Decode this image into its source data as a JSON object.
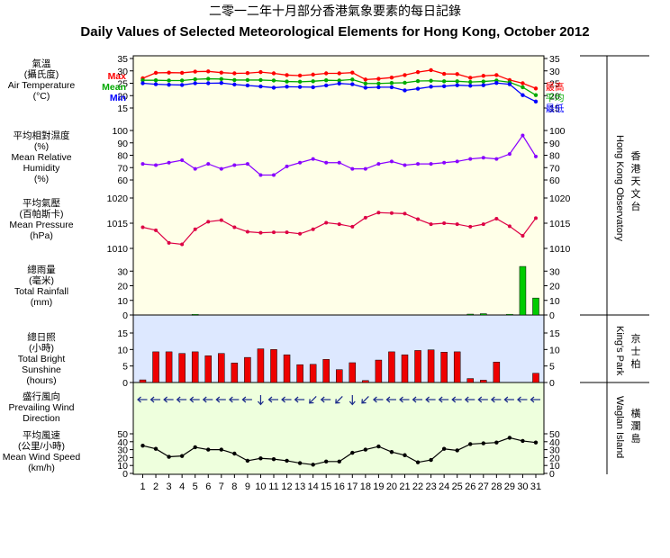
{
  "title_zh": "二零一二年十月部分香港氣象要素的每日記錄",
  "title_en": "Daily Values of Selected Meteorological Elements for Hong Kong, October 2012",
  "colors": {
    "max": "#ff0000",
    "mean": "#00aa00",
    "min": "#0000ff",
    "rh": "#8800ff",
    "pressure": "#dd0044",
    "rain": "#00cc00",
    "sun": "#ee0000",
    "wind": "#000000",
    "bg_obs": "#ffffe8",
    "bg_kp": "#dde8ff",
    "bg_wag": "#eeffdd"
  },
  "stations": {
    "observatory": {
      "en": "Hong Kong Observatory",
      "zh": [
        "香",
        "港",
        "天",
        "文",
        "台"
      ]
    },
    "kings_park": {
      "en": "King's Park",
      "zh": [
        "京",
        "士",
        "柏"
      ]
    },
    "waglan": {
      "en": "Waglan Island",
      "zh": [
        "橫",
        "瀾",
        "島"
      ]
    }
  },
  "chart_data": [
    {
      "type": "line",
      "id": "temperature",
      "label_zh": "氣溫",
      "label_zh2": "(攝氏度)",
      "label_en": "Air Temperature",
      "unit": "(°C)",
      "ylim": [
        15,
        35
      ],
      "ticks": [
        15,
        20,
        25,
        30,
        35
      ],
      "x": [
        1,
        2,
        3,
        4,
        5,
        6,
        7,
        8,
        9,
        10,
        11,
        12,
        13,
        14,
        15,
        16,
        17,
        18,
        19,
        20,
        21,
        22,
        23,
        24,
        25,
        26,
        27,
        28,
        29,
        30,
        31
      ],
      "series": [
        {
          "name": "Max",
          "name_zh": "最高",
          "values": [
            27.0,
            29.2,
            29.3,
            29.2,
            29.7,
            29.8,
            29.3,
            29.0,
            29.1,
            29.5,
            29.0,
            28.3,
            28.1,
            28.5,
            29.0,
            29.0,
            29.3,
            26.5,
            26.8,
            27.3,
            28.3,
            29.5,
            30.3,
            28.8,
            28.7,
            27.2,
            28.0,
            28.3,
            26.3,
            25.0,
            22.9
          ]
        },
        {
          "name": "Mean",
          "name_zh": "平均",
          "values": [
            26.2,
            26.2,
            26.1,
            26.1,
            26.6,
            26.8,
            26.7,
            26.3,
            26.3,
            26.3,
            26.1,
            25.7,
            25.6,
            25.8,
            26.2,
            26.1,
            26.5,
            24.9,
            24.9,
            25.1,
            25.2,
            25.9,
            26.0,
            25.8,
            25.8,
            25.5,
            25.7,
            26.1,
            25.4,
            23.4,
            20.2
          ]
        },
        {
          "name": "Min",
          "name_zh": "最低",
          "values": [
            25.0,
            24.6,
            24.4,
            24.3,
            25.0,
            25.0,
            25.1,
            24.5,
            24.1,
            23.7,
            23.2,
            23.6,
            23.5,
            23.4,
            24.1,
            24.9,
            24.6,
            23.2,
            23.4,
            23.4,
            22.1,
            22.8,
            23.6,
            23.8,
            24.2,
            24.0,
            24.2,
            25.1,
            24.6,
            20.2,
            17.6
          ]
        }
      ]
    },
    {
      "type": "line",
      "id": "humidity",
      "label_zh": "平均相對濕度",
      "label_zh2": "(%)",
      "label_en": "Mean Relative",
      "label_en2": "Humidity",
      "unit": "(%)",
      "ylim": [
        60,
        100
      ],
      "ticks": [
        60,
        70,
        80,
        90,
        100
      ],
      "x": [
        1,
        2,
        3,
        4,
        5,
        6,
        7,
        8,
        9,
        10,
        11,
        12,
        13,
        14,
        15,
        16,
        17,
        18,
        19,
        20,
        21,
        22,
        23,
        24,
        25,
        26,
        27,
        28,
        29,
        30,
        31
      ],
      "values": [
        73,
        72,
        74,
        76,
        69,
        73,
        69,
        72,
        73,
        64,
        64,
        71,
        74,
        77,
        74,
        74,
        69,
        69,
        73,
        75,
        72,
        73,
        73,
        74,
        75,
        77,
        78,
        77,
        81,
        96,
        79
      ]
    },
    {
      "type": "line",
      "id": "pressure",
      "label_zh": "平均氣壓",
      "label_zh2": "(百帕斯卡)",
      "label_en": "Mean Pressure",
      "unit": "(hPa)",
      "ylim": [
        1010,
        1020
      ],
      "ticks": [
        1010,
        1015,
        1020
      ],
      "x": [
        1,
        2,
        3,
        4,
        5,
        6,
        7,
        8,
        9,
        10,
        11,
        12,
        13,
        14,
        15,
        16,
        17,
        18,
        19,
        20,
        21,
        22,
        23,
        24,
        25,
        26,
        27,
        28,
        29,
        30,
        31
      ],
      "values": [
        1014.2,
        1013.6,
        1011.1,
        1010.8,
        1013.8,
        1015.3,
        1015.6,
        1014.2,
        1013.3,
        1013.1,
        1013.2,
        1013.2,
        1012.9,
        1013.8,
        1015.1,
        1014.8,
        1014.3,
        1016.1,
        1017.1,
        1017.0,
        1016.9,
        1015.8,
        1014.8,
        1015.0,
        1014.8,
        1014.3,
        1014.8,
        1015.9,
        1014.4,
        1012.5,
        1016.0
      ]
    },
    {
      "type": "bar",
      "id": "rainfall",
      "label_zh": "總雨量",
      "label_zh2": "(毫米)",
      "label_en": "Total Rainfall",
      "unit": "(mm)",
      "ylim": [
        0,
        40
      ],
      "ticks": [
        0,
        10,
        20,
        30
      ],
      "x": [
        1,
        2,
        3,
        4,
        5,
        6,
        7,
        8,
        9,
        10,
        11,
        12,
        13,
        14,
        15,
        16,
        17,
        18,
        19,
        20,
        21,
        22,
        23,
        24,
        25,
        26,
        27,
        28,
        29,
        30,
        31
      ],
      "values": [
        0,
        0,
        0,
        0,
        0.4,
        0,
        0,
        0,
        0,
        0,
        0,
        0,
        0,
        0,
        0,
        0,
        0,
        0,
        0,
        0,
        0,
        0,
        0,
        0,
        0,
        0.6,
        0.9,
        0,
        0.5,
        33.2,
        11.6
      ]
    },
    {
      "type": "bar",
      "id": "sunshine",
      "label_zh": "總日照",
      "label_zh2": "(小時)",
      "label_en": "Total Bright",
      "label_en2": "Sunshine",
      "unit": "(hours)",
      "ylim": [
        0,
        15
      ],
      "ticks": [
        0,
        5,
        10,
        15
      ],
      "x": [
        1,
        2,
        3,
        4,
        5,
        6,
        7,
        8,
        9,
        10,
        11,
        12,
        13,
        14,
        15,
        16,
        17,
        18,
        19,
        20,
        21,
        22,
        23,
        24,
        25,
        26,
        27,
        28,
        29,
        30,
        31
      ],
      "values": [
        0.8,
        9.3,
        9.3,
        8.8,
        9.3,
        8.1,
        8.8,
        5.9,
        7.6,
        10.2,
        10.0,
        8.4,
        5.4,
        5.5,
        7.0,
        3.9,
        6.0,
        0.6,
        6.8,
        9.3,
        8.4,
        9.7,
        9.9,
        9.2,
        9.3,
        1.2,
        0.7,
        6.2,
        0,
        0,
        2.8
      ]
    },
    {
      "type": "table",
      "id": "wind_direction",
      "label_zh": "盛行風向",
      "label_en": "Prevailing Wind",
      "label_en2": "Direction",
      "x": [
        1,
        2,
        3,
        4,
        5,
        6,
        7,
        8,
        9,
        10,
        11,
        12,
        13,
        14,
        15,
        16,
        17,
        18,
        19,
        20,
        21,
        22,
        23,
        24,
        25,
        26,
        27,
        28,
        29,
        30,
        31
      ],
      "angles": [
        90,
        90,
        90,
        90,
        90,
        90,
        90,
        90,
        90,
        0,
        90,
        90,
        90,
        45,
        90,
        45,
        0,
        45,
        90,
        90,
        90,
        90,
        90,
        90,
        90,
        90,
        90,
        90,
        90,
        90,
        90
      ]
    },
    {
      "type": "line",
      "id": "wind_speed",
      "label_zh": "平均風速",
      "label_zh2": "(公里/小時)",
      "label_en": "Mean Wind Speed",
      "unit": "(km/h)",
      "ylim": [
        0,
        50
      ],
      "ticks": [
        0,
        10,
        20,
        30,
        40,
        50
      ],
      "x": [
        1,
        2,
        3,
        4,
        5,
        6,
        7,
        8,
        9,
        10,
        11,
        12,
        13,
        14,
        15,
        16,
        17,
        18,
        19,
        20,
        21,
        22,
        23,
        24,
        25,
        26,
        27,
        28,
        29,
        30,
        31
      ],
      "values": [
        35,
        31,
        21,
        22,
        33,
        30,
        30,
        25,
        16,
        19,
        18,
        16,
        13,
        11,
        15,
        15,
        26,
        30,
        34,
        27,
        23,
        14,
        17,
        31,
        29,
        37,
        38,
        39,
        45,
        41,
        39
      ]
    }
  ]
}
